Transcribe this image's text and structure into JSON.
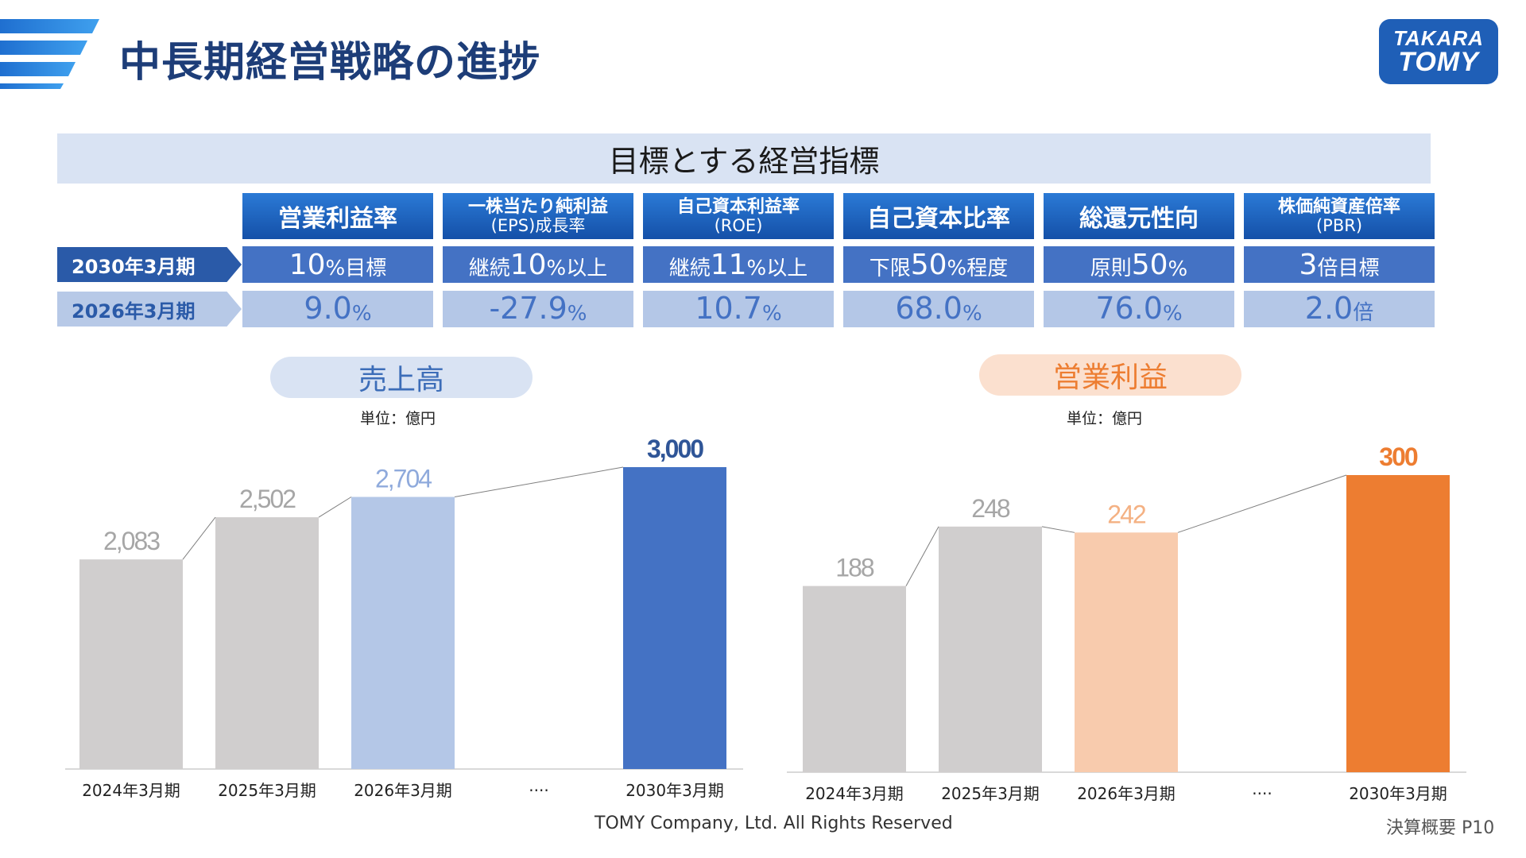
{
  "header": {
    "title": "中長期経営戦略の進捗",
    "logo_line1": "TAKARA",
    "logo_line2": "TOMY"
  },
  "kpi": {
    "banner": "目標とする経営指標",
    "columns": [
      {
        "head_lines": [
          "営業利益率"
        ],
        "target_num": "10",
        "target_suffix": "%目標",
        "target_prefix": "",
        "actual_num": "9.0",
        "actual_suffix": "%"
      },
      {
        "head_lines": [
          "一株当たり純利益",
          "(EPS)成長率"
        ],
        "target_prefix": "継続",
        "target_num": "10",
        "target_suffix": "%以上",
        "actual_num": "-27.9",
        "actual_suffix": "%"
      },
      {
        "head_lines": [
          "自己資本利益率",
          "(ROE)"
        ],
        "target_prefix": "継続",
        "target_num": "11",
        "target_suffix": "%以上",
        "actual_num": "10.7",
        "actual_suffix": "%"
      },
      {
        "head_lines": [
          "自己資本比率"
        ],
        "target_prefix": "下限",
        "target_num": "50",
        "target_suffix": "%程度",
        "actual_num": "68.0",
        "actual_suffix": "%"
      },
      {
        "head_lines": [
          "総還元性向"
        ],
        "target_prefix": "原則",
        "target_num": "50",
        "target_suffix": "%",
        "actual_num": "76.0",
        "actual_suffix": "%"
      },
      {
        "head_lines": [
          "株価純資産倍率",
          "(PBR)"
        ],
        "target_prefix": "",
        "target_num": "3",
        "target_suffix": "倍目標",
        "actual_num": "2.0",
        "actual_suffix": "倍"
      }
    ],
    "row_target_label": "2030年3月期",
    "row_actual_label": "2026年3月期"
  },
  "chart_data": [
    {
      "type": "bar",
      "title": "売上高",
      "unit": "単位：億円",
      "categories": [
        "2024年3月期",
        "2025年3月期",
        "2026年3月期",
        "····",
        "2030年3月期"
      ],
      "values": [
        2083,
        2502,
        2704,
        null,
        3000
      ],
      "labels": [
        "2,083",
        "2,502",
        "2,704",
        "",
        "3,000"
      ],
      "colors": [
        "#d0cece",
        "#d0cece",
        "#b4c7e7",
        null,
        "#4472c4"
      ],
      "label_colors": [
        "#a6a6a6",
        "#a6a6a6",
        "#8faadc",
        null,
        "#2f5597"
      ],
      "ylim": [
        0,
        3000
      ]
    },
    {
      "type": "bar",
      "title": "営業利益",
      "unit": "単位：億円",
      "categories": [
        "2024年3月期",
        "2025年3月期",
        "2026年3月期",
        "····",
        "2030年3月期"
      ],
      "values": [
        188,
        248,
        242,
        null,
        300
      ],
      "labels": [
        "188",
        "248",
        "242",
        "",
        "300"
      ],
      "colors": [
        "#d0cece",
        "#d0cece",
        "#f8cbad",
        null,
        "#ed7d31"
      ],
      "label_colors": [
        "#a6a6a6",
        "#a6a6a6",
        "#f4b183",
        null,
        "#ed7d31"
      ],
      "ylim": [
        0,
        300
      ]
    }
  ],
  "footer": {
    "copyright": "TOMY Company, Ltd. All Rights Reserved",
    "page": "決算概要 P10"
  }
}
